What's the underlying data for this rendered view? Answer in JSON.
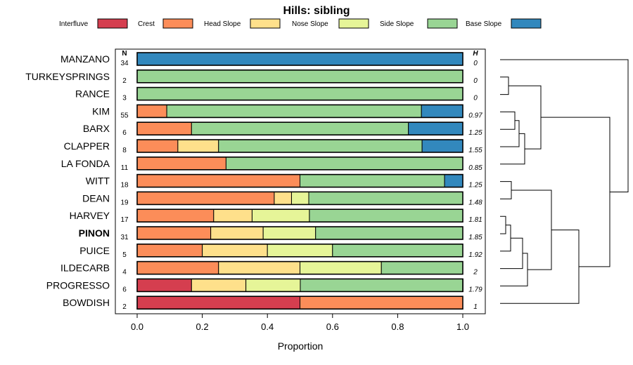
{
  "chart_data": {
    "type": "bar",
    "orientation": "horizontal",
    "stacked": true,
    "title": "Hills: sibling",
    "xlabel": "Proportion",
    "ylabel": "",
    "xlim": [
      0,
      1
    ],
    "xticks": [
      "0.0",
      "0.2",
      "0.4",
      "0.6",
      "0.8",
      "1.0"
    ],
    "n_header": "N",
    "h_header": "H",
    "legend": [
      "Interfluve",
      "Crest",
      "Head Slope",
      "Nose Slope",
      "Side Slope",
      "Base Slope"
    ],
    "colors": [
      "#d53e4f",
      "#fc8d59",
      "#fee08b",
      "#e6f598",
      "#99d594",
      "#3288bd"
    ],
    "categories": [
      "MANZANO",
      "TURKEYSPRINGS",
      "RANCE",
      "KIM",
      "BARX",
      "CLAPPER",
      "LA FONDA",
      "WITT",
      "DEAN",
      "HARVEY",
      "PINON",
      "PUICE",
      "ILDECARB",
      "PROGRESSO",
      "BOWDISH"
    ],
    "highlight": "PINON",
    "n": [
      "34",
      "2",
      "3",
      "55",
      "6",
      "8",
      "11",
      "18",
      "19",
      "17",
      "31",
      "5",
      "4",
      "6",
      "2"
    ],
    "h": [
      "0",
      "0",
      "0",
      "0.97",
      "1.25",
      "1.55",
      "0.85",
      "1.25",
      "1.48",
      "1.81",
      "1.85",
      "1.92",
      "2",
      "1.79",
      "1"
    ],
    "series": [
      {
        "name": "Interfluve",
        "values": [
          0,
          0,
          0,
          0,
          0,
          0,
          0,
          0,
          0,
          0,
          0,
          0,
          0,
          0.167,
          0.5
        ]
      },
      {
        "name": "Crest",
        "values": [
          0,
          0,
          0,
          0.091,
          0.167,
          0.125,
          0.273,
          0.5,
          0.421,
          0.235,
          0.226,
          0.2,
          0.25,
          0,
          0.5
        ]
      },
      {
        "name": "Head Slope",
        "values": [
          0,
          0,
          0,
          0,
          0,
          0.125,
          0,
          0,
          0.053,
          0.118,
          0.161,
          0.2,
          0.25,
          0.167,
          0
        ]
      },
      {
        "name": "Nose Slope",
        "values": [
          0,
          0,
          0,
          0,
          0,
          0,
          0,
          0,
          0.053,
          0.176,
          0.161,
          0.2,
          0.25,
          0.167,
          0
        ]
      },
      {
        "name": "Side Slope",
        "values": [
          0,
          1,
          1,
          0.782,
          0.666,
          0.625,
          0.727,
          0.444,
          0.473,
          0.471,
          0.452,
          0.4,
          0.25,
          0.5,
          0
        ]
      },
      {
        "name": "Base Slope",
        "values": [
          1,
          0,
          0,
          0.127,
          0.167,
          0.125,
          0,
          0.056,
          0,
          0,
          0,
          0,
          0,
          0,
          0
        ]
      }
    ]
  }
}
